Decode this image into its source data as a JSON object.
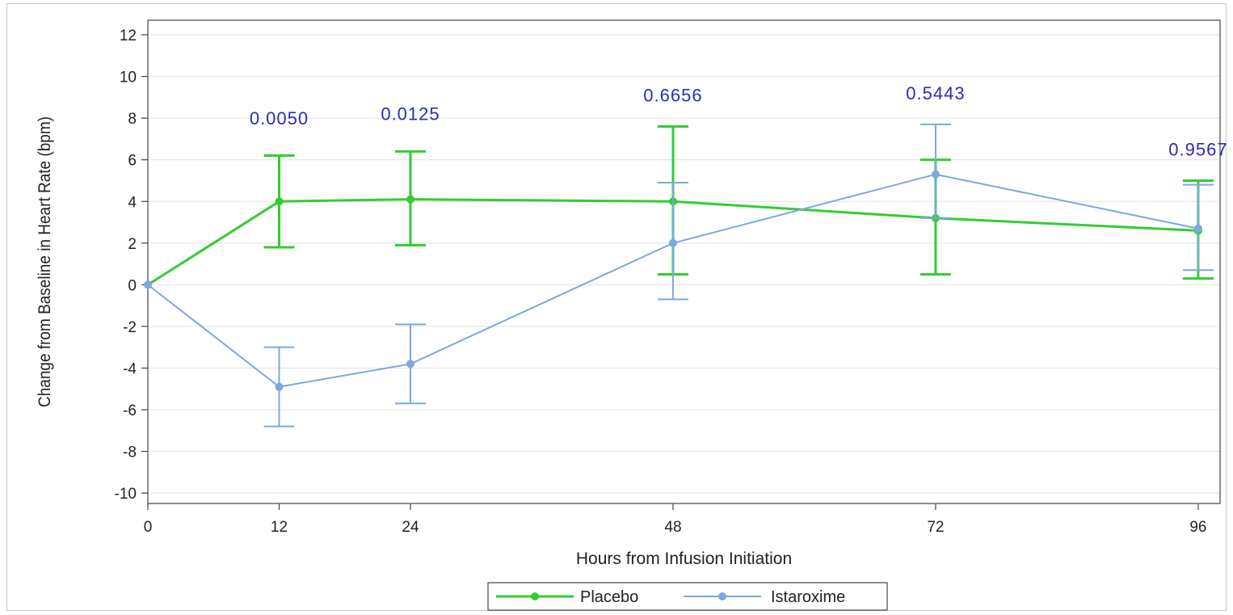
{
  "chart_data": {
    "type": "line",
    "title": "",
    "xlabel": "Hours from Infusion Initiation",
    "ylabel": "Change from Baseline in Heart Rate (bpm)",
    "x": [
      0,
      12,
      24,
      48,
      72,
      96
    ],
    "x_ticks": [
      "0",
      "12",
      "24",
      "48",
      "72",
      "96"
    ],
    "xlim": [
      0,
      98
    ],
    "ylim": [
      -10.5,
      12.7
    ],
    "y_ticks": [
      12,
      10,
      8,
      6,
      4,
      2,
      0,
      -2,
      -4,
      -6,
      -8,
      -10
    ],
    "grid": true,
    "legend_position": "bottom-center",
    "series": [
      {
        "name": "Placebo",
        "color": "#33cc33",
        "values": [
          0,
          4.0,
          4.1,
          4.0,
          3.2,
          2.6
        ],
        "lower": [
          0,
          1.8,
          1.9,
          0.5,
          0.5,
          0.3
        ],
        "upper": [
          0,
          6.2,
          6.4,
          7.6,
          6.0,
          5.0
        ]
      },
      {
        "name": "Istaroxime",
        "color": "#7ea6e0",
        "values": [
          0,
          -4.9,
          -3.8,
          2.0,
          5.3,
          2.7
        ],
        "lower": [
          0,
          -6.8,
          -5.7,
          -0.7,
          3.2,
          0.7
        ],
        "upper": [
          0,
          -3.0,
          -1.9,
          4.9,
          7.7,
          4.8
        ]
      }
    ],
    "annotations": [
      {
        "x": 12,
        "y": 7.7,
        "text": "0.0050"
      },
      {
        "x": 24,
        "y": 7.9,
        "text": "0.0125"
      },
      {
        "x": 48,
        "y": 8.8,
        "text": "0.6656"
      },
      {
        "x": 72,
        "y": 8.9,
        "text": "0.5443"
      },
      {
        "x": 96,
        "y": 6.2,
        "text": "0.9567"
      }
    ],
    "annotation_color": "#2b2bb8"
  }
}
